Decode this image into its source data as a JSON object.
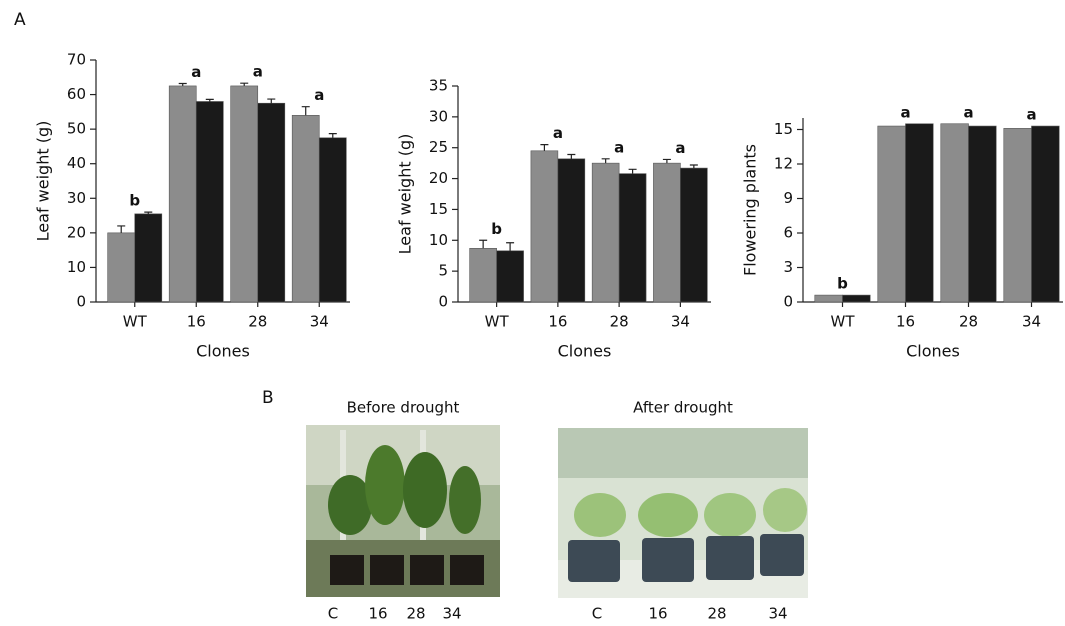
{
  "panel_labels": [
    "A",
    "B"
  ],
  "chart_data": [
    {
      "type": "bar",
      "y_label": "Leaf weight (g)",
      "x_label": "Clones",
      "categories": [
        "WT",
        "16",
        "28",
        "34"
      ],
      "series": [
        {
          "color": "#8c8c8c",
          "values": [
            20,
            62.5,
            62.5,
            54
          ],
          "errors": [
            2,
            0.7,
            0.8,
            2.5
          ]
        },
        {
          "color": "#1a1a1a",
          "values": [
            25.5,
            58,
            57.5,
            47.5
          ],
          "errors": [
            0.5,
            0.6,
            1.2,
            1.2
          ]
        }
      ],
      "annotations": [
        "b",
        "a",
        "a",
        "a"
      ],
      "ylim": [
        0,
        70
      ],
      "yticks": [
        0,
        10,
        20,
        30,
        40,
        50,
        60,
        70
      ]
    },
    {
      "type": "bar",
      "y_label": "Leaf weight (g)",
      "x_label": "Clones",
      "categories": [
        "WT",
        "16",
        "28",
        "34"
      ],
      "series": [
        {
          "color": "#8c8c8c",
          "values": [
            8.7,
            24.5,
            22.5,
            22.5
          ],
          "errors": [
            1.3,
            1,
            0.7,
            0.6
          ]
        },
        {
          "color": "#1a1a1a",
          "values": [
            8.3,
            23.2,
            20.8,
            21.7
          ],
          "errors": [
            1.3,
            0.7,
            0.7,
            0.5
          ]
        }
      ],
      "annotations": [
        "b",
        "a",
        "a",
        "a"
      ],
      "ylim": [
        0,
        35
      ],
      "yticks": [
        0,
        5,
        10,
        15,
        20,
        25,
        30,
        35
      ]
    },
    {
      "type": "bar",
      "y_label": "Flowering plants",
      "x_label": "Clones",
      "categories": [
        "WT",
        "16",
        "28",
        "34"
      ],
      "series": [
        {
          "color": "#8c8c8c",
          "values": [
            0.6,
            15.3,
            15.5,
            15.1
          ]
        },
        {
          "color": "#1a1a1a",
          "values": [
            0.6,
            15.5,
            15.3,
            15.3
          ]
        }
      ],
      "annotations": [
        "b",
        "a",
        "a",
        "a"
      ],
      "ylim": [
        0,
        16
      ],
      "yticks": [
        0,
        3,
        6,
        9,
        12,
        15
      ]
    }
  ],
  "photos": [
    {
      "caption": "Before drought",
      "labels": [
        "C",
        "16",
        "28",
        "34"
      ]
    },
    {
      "caption": "After drought",
      "labels": [
        "C",
        "16",
        "28",
        "34"
      ]
    }
  ]
}
